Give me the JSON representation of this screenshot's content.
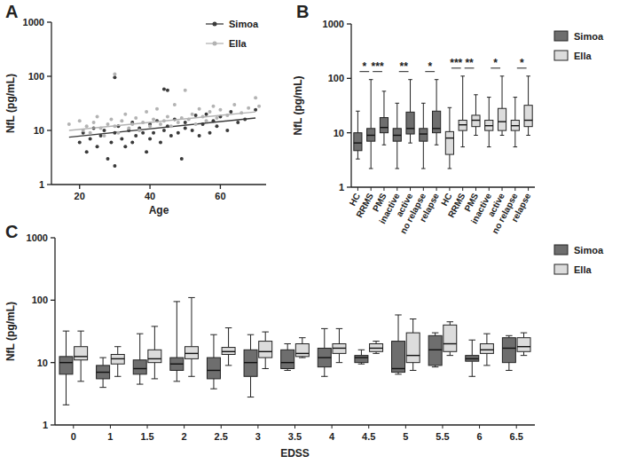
{
  "chart_data": [
    {
      "type": "scatter",
      "title": "A",
      "x_label": "Age",
      "y_label": "NfL (pg/mL)",
      "log": "y",
      "grid": false,
      "legend": "top-right",
      "xlim": [
        12,
        73
      ],
      "xticks": [
        20,
        40,
        60
      ],
      "ylim": [
        1,
        1000
      ],
      "yticks": [
        1,
        10,
        100,
        1000
      ],
      "series": [
        {
          "name": "Simoa",
          "color": "#3a3a3a",
          "marker": "circle",
          "line_style": "solid",
          "x": [
            20,
            21,
            22,
            23,
            24,
            25,
            26,
            27,
            28,
            29,
            30,
            30,
            31,
            32,
            33,
            34,
            35,
            35,
            36,
            37,
            38,
            39,
            40,
            40,
            41,
            42,
            43,
            44,
            45,
            45,
            46,
            47,
            48,
            49,
            50,
            50,
            52,
            53,
            54,
            55,
            56,
            57,
            58,
            59,
            60,
            62,
            63,
            65,
            67,
            70,
            30,
            44
          ],
          "values": [
            6,
            9,
            4,
            7,
            11,
            5,
            8,
            10,
            3,
            6,
            2.2,
            9,
            12,
            7,
            5,
            10,
            14,
            6,
            8,
            11,
            9,
            4,
            13,
            7,
            9,
            15,
            6,
            10,
            12,
            55,
            8,
            16,
            9,
            3,
            11,
            14,
            10,
            19,
            8,
            13,
            20,
            9,
            15,
            12,
            18,
            10,
            22,
            14,
            16,
            24,
            95,
            58
          ],
          "fit": {
            "x": [
              17,
              70
            ],
            "values": [
              7.5,
              17
            ]
          }
        },
        {
          "name": "Ella",
          "color": "#b3b3b3",
          "marker": "circle",
          "line_style": "solid",
          "x": [
            17,
            20,
            21,
            22,
            23,
            24,
            25,
            26,
            27,
            28,
            29,
            30,
            30,
            31,
            32,
            33,
            34,
            35,
            36,
            37,
            38,
            39,
            40,
            41,
            42,
            43,
            44,
            45,
            46,
            47,
            48,
            49,
            50,
            51,
            52,
            53,
            54,
            55,
            56,
            57,
            58,
            59,
            60,
            62,
            64,
            66,
            68,
            70,
            71
          ],
          "values": [
            13,
            15,
            10,
            12,
            9,
            14,
            18,
            11,
            8,
            13,
            16,
            110,
            12,
            9,
            15,
            20,
            11,
            13,
            17,
            10,
            14,
            22,
            12,
            16,
            25,
            13,
            15,
            18,
            12,
            30,
            14,
            17,
            55,
            16,
            20,
            13,
            25,
            18,
            15,
            22,
            28,
            17,
            24,
            19,
            30,
            21,
            26,
            40,
            28
          ],
          "fit": {
            "x": [
              17,
              70
            ],
            "values": [
              10,
              22
            ]
          }
        }
      ]
    },
    {
      "type": "box",
      "title": "B",
      "y_label": "NfL (pg/mL)",
      "log": "y",
      "grid": false,
      "legend": "right",
      "ylim": [
        1,
        1000
      ],
      "yticks": [
        1,
        10,
        100,
        1000
      ],
      "categories": [
        "HC",
        "RRMS",
        "PMS",
        "inactive",
        "active",
        "no relapse",
        "relapse",
        "HC",
        "RRMS",
        "PMS",
        "inactive",
        "active",
        "no relapse",
        "relapse"
      ],
      "series": [
        {
          "name": "Simoa",
          "color": "#6e6e6e",
          "values": [
            {
              "min": 3.3,
              "q1": 4.7,
              "median": 6.5,
              "q3": 10,
              "max": 25
            },
            {
              "min": 2.2,
              "q1": 7,
              "median": 9,
              "q3": 12,
              "max": 95
            },
            {
              "min": 6,
              "q1": 10,
              "median": 12.5,
              "q3": 19,
              "max": 58
            },
            {
              "min": 2.2,
              "q1": 7,
              "median": 9,
              "q3": 12,
              "max": 35
            },
            {
              "min": 6.5,
              "q1": 9.5,
              "median": 12,
              "q3": 24,
              "max": 95
            },
            {
              "min": 2.2,
              "q1": 7,
              "median": 9.5,
              "q3": 12,
              "max": 35
            },
            {
              "min": 6,
              "q1": 10,
              "median": 12,
              "q3": 25,
              "max": 95
            },
            null,
            null,
            null,
            null,
            null,
            null,
            null
          ]
        },
        {
          "name": "Ella",
          "color": "#dcdcdc",
          "values": [
            null,
            null,
            null,
            null,
            null,
            null,
            null,
            {
              "min": 2.2,
              "q1": 4,
              "median": 8,
              "q3": 10.5,
              "max": 29
            },
            {
              "min": 5.5,
              "q1": 11,
              "median": 14,
              "q3": 17,
              "max": 110
            },
            {
              "min": 9,
              "q1": 13,
              "median": 17,
              "q3": 21,
              "max": 50
            },
            {
              "min": 5.5,
              "q1": 11,
              "median": 13.5,
              "q3": 17,
              "max": 45
            },
            {
              "min": 9,
              "q1": 11,
              "median": 16,
              "q3": 28,
              "max": 110
            },
            {
              "min": 5.5,
              "q1": 11,
              "median": 13.5,
              "q3": 17,
              "max": 45
            },
            {
              "min": 9,
              "q1": 13,
              "median": 17,
              "q3": 32,
              "max": 110
            }
          ]
        }
      ],
      "annotations": [
        {
          "text": "*",
          "between": [
            0,
            1
          ]
        },
        {
          "text": "***",
          "between": [
            1,
            2
          ]
        },
        {
          "text": "**",
          "between": [
            3,
            4
          ]
        },
        {
          "text": "*",
          "between": [
            5,
            6
          ]
        },
        {
          "text": "***",
          "between": [
            7,
            8
          ]
        },
        {
          "text": "**",
          "between": [
            8,
            9
          ]
        },
        {
          "text": "*",
          "between": [
            10,
            11
          ]
        },
        {
          "text": "*",
          "between": [
            12,
            13
          ]
        }
      ]
    },
    {
      "type": "box",
      "title": "C",
      "x_label": "EDSS",
      "y_label": "NfL (pg/mL)",
      "log": "y",
      "grid": false,
      "legend": "right",
      "ylim": [
        1,
        1000
      ],
      "yticks": [
        1,
        10,
        100,
        1000
      ],
      "categories": [
        "0",
        "1",
        "1.5",
        "2",
        "2.5",
        "3",
        "3.5",
        "4",
        "4.5",
        "5",
        "5.5",
        "6",
        "6.5"
      ],
      "series": [
        {
          "name": "Simoa",
          "color": "#6e6e6e",
          "values": [
            {
              "min": 2.1,
              "q1": 6.5,
              "median": 10,
              "q3": 12.5,
              "max": 32
            },
            {
              "min": 4,
              "q1": 5.5,
              "median": 7,
              "q3": 9,
              "max": 12
            },
            {
              "min": 4.5,
              "q1": 6.5,
              "median": 8,
              "q3": 11,
              "max": 29
            },
            {
              "min": 5,
              "q1": 7.5,
              "median": 9.5,
              "q3": 12,
              "max": 95
            },
            {
              "min": 3.8,
              "q1": 5.5,
              "median": 7.5,
              "q3": 12,
              "max": 28
            },
            {
              "min": 2.8,
              "q1": 6,
              "median": 10,
              "q3": 16,
              "max": 28
            },
            {
              "min": 7.5,
              "q1": 8,
              "median": 10,
              "q3": 16,
              "max": 20
            },
            {
              "min": 6,
              "q1": 8.5,
              "median": 12,
              "q3": 17,
              "max": 35
            },
            {
              "min": 9.5,
              "q1": 10,
              "median": 12,
              "q3": 13,
              "max": 16
            },
            {
              "min": 6.5,
              "q1": 7,
              "median": 8,
              "q3": 22,
              "max": 58
            },
            {
              "min": 8.5,
              "q1": 9,
              "median": 16,
              "q3": 27,
              "max": 30
            },
            {
              "min": 6,
              "q1": 10.5,
              "median": 11.5,
              "q3": 13,
              "max": 23
            },
            {
              "min": 7.5,
              "q1": 10,
              "median": 17,
              "q3": 25,
              "max": 27
            }
          ]
        },
        {
          "name": "Ella",
          "color": "#dcdcdc",
          "values": [
            {
              "min": 5,
              "q1": 11,
              "median": 12.5,
              "q3": 18,
              "max": 32
            },
            {
              "min": 6,
              "q1": 9.5,
              "median": 11.5,
              "q3": 13.5,
              "max": 18
            },
            {
              "min": 5.5,
              "q1": 10,
              "median": 11.5,
              "q3": 16,
              "max": 38
            },
            {
              "min": 6,
              "q1": 11.5,
              "median": 14,
              "q3": 18,
              "max": 110
            },
            {
              "min": 9,
              "q1": 13.5,
              "median": 15,
              "q3": 17.5,
              "max": 36
            },
            {
              "min": 8,
              "q1": 12,
              "median": 15,
              "q3": 22,
              "max": 31
            },
            {
              "min": 12,
              "q1": 12.5,
              "median": 14,
              "q3": 20,
              "max": 25
            },
            {
              "min": 10,
              "q1": 14,
              "median": 17,
              "q3": 20,
              "max": 35
            },
            {
              "min": 14,
              "q1": 15,
              "median": 17,
              "q3": 20,
              "max": 22
            },
            {
              "min": 7.5,
              "q1": 10,
              "median": 13,
              "q3": 30,
              "max": 50
            },
            {
              "min": 13,
              "q1": 15,
              "median": 20,
              "q3": 40,
              "max": 45
            },
            {
              "min": 9,
              "q1": 14,
              "median": 16,
              "q3": 20,
              "max": 29
            },
            {
              "min": 13,
              "q1": 15,
              "median": 18,
              "q3": 25,
              "max": 30
            }
          ]
        }
      ]
    }
  ]
}
